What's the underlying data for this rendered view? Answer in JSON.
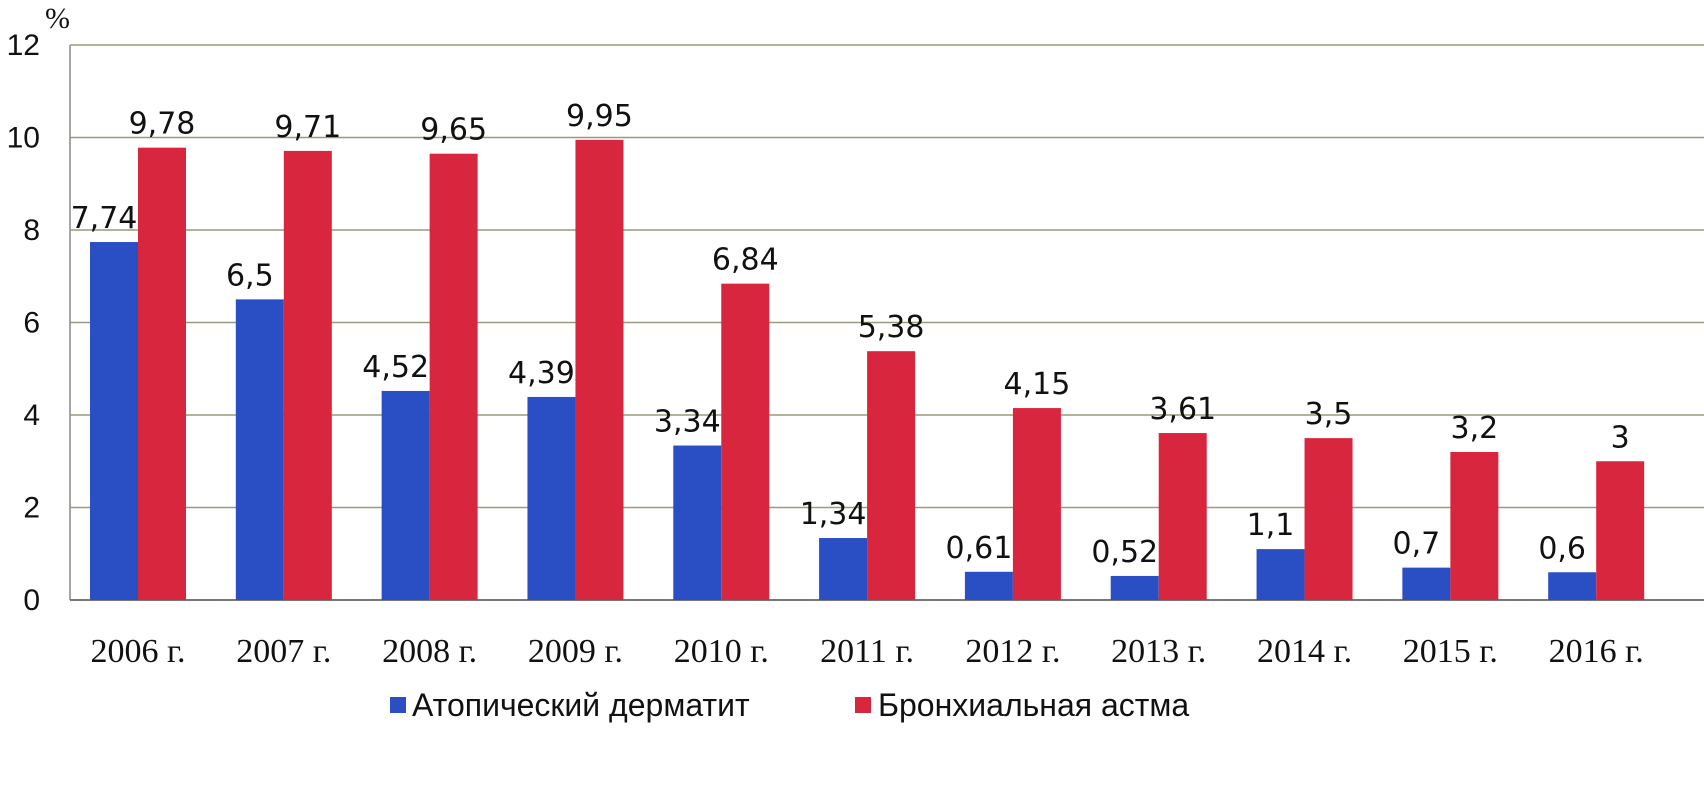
{
  "chart_data": {
    "type": "bar",
    "title": "",
    "xlabel": "",
    "ylabel": "%",
    "ylim": [
      0,
      12
    ],
    "yticks": [
      "0",
      "2",
      "4",
      "6",
      "8",
      "10",
      "12"
    ],
    "grid": true,
    "legend_position": "bottom",
    "categories": [
      "2006 г.",
      "2007 г.",
      "2008 г.",
      "2009 г.",
      "2010 г.",
      "2011 г.",
      "2012 г.",
      "2013 г.",
      "2014 г.",
      "2015 г.",
      "2016 г."
    ],
    "series": [
      {
        "name": "Атопический дерматит",
        "color": "#2a4fc4",
        "values": [
          7.74,
          6.5,
          4.52,
          4.39,
          3.34,
          1.34,
          0.61,
          0.52,
          1.1,
          0.7,
          0.6
        ],
        "labels": [
          "7,74",
          "6,5",
          "4,52",
          "4,39",
          "3,34",
          "1,34",
          "0,61",
          "0,52",
          "1,1",
          "0,7",
          "0,6"
        ]
      },
      {
        "name": "Бронхиальная астма",
        "color": "#d9263f",
        "values": [
          9.78,
          9.71,
          9.65,
          9.95,
          6.84,
          5.38,
          4.15,
          3.61,
          3.5,
          3.2,
          3
        ],
        "labels": [
          "9,78",
          "9,71",
          "9,65",
          "9,95",
          "6,84",
          "5,38",
          "4,15",
          "3,61",
          "3,5",
          "3,2",
          "3"
        ]
      }
    ]
  }
}
